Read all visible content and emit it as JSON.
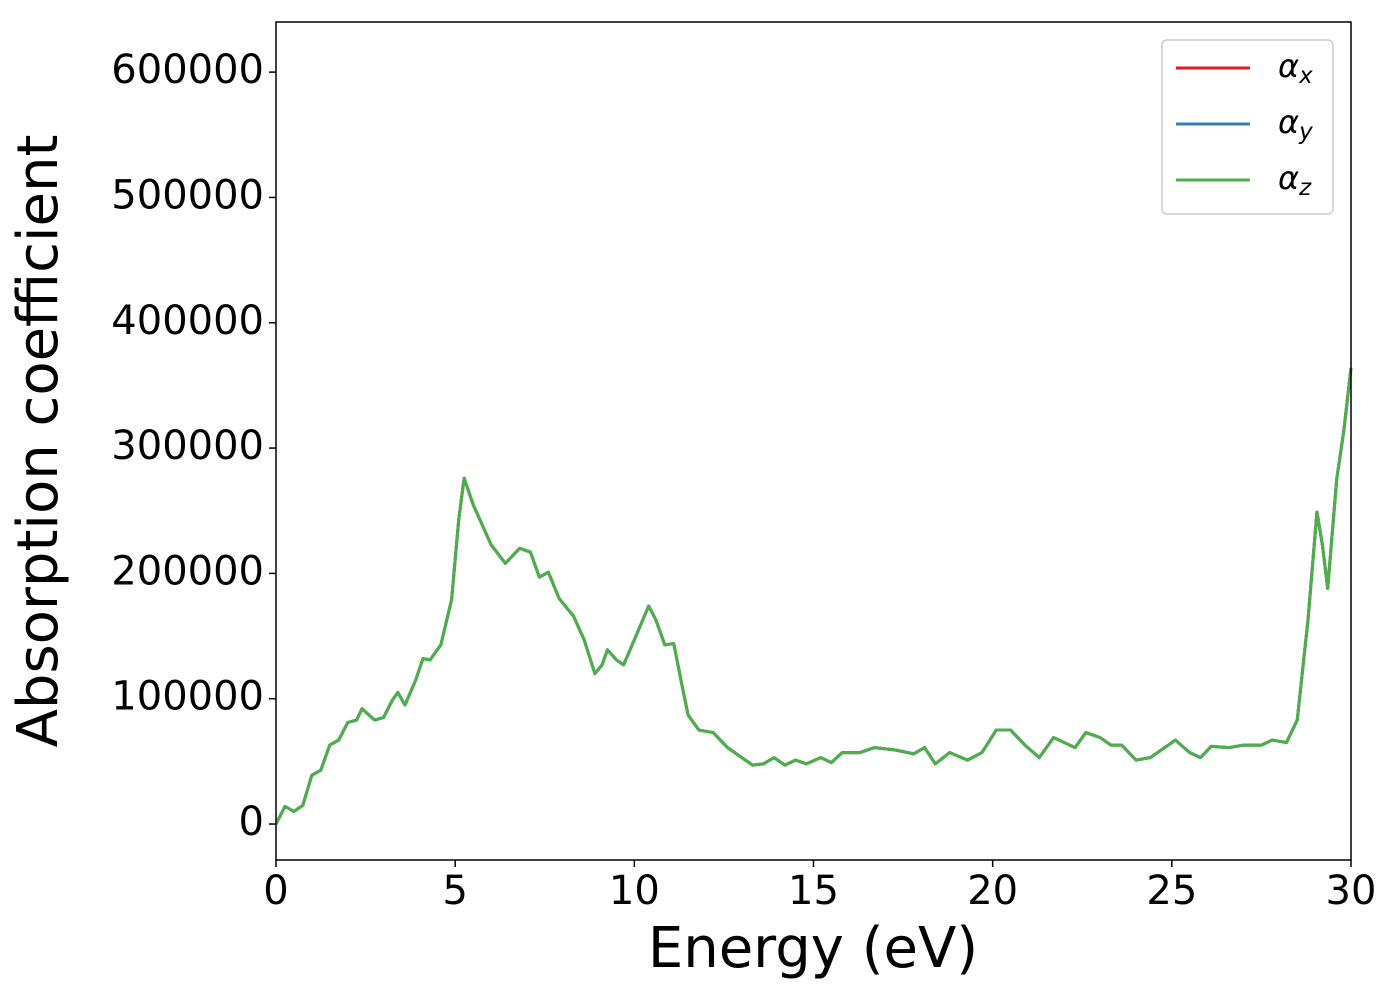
{
  "chart_data": {
    "type": "line",
    "xlabel": "Energy (eV)",
    "ylabel": "Absorption coefficient",
    "x": [
      0,
      0.25,
      0.5,
      0.75,
      1.0,
      1.25,
      1.5,
      1.75,
      2.0,
      2.25,
      2.4,
      2.75,
      3.0,
      3.25,
      3.4,
      3.6,
      3.9,
      4.1,
      4.3,
      4.6,
      4.9,
      5.1,
      5.25,
      5.5,
      5.75,
      6.0,
      6.4,
      6.8,
      7.1,
      7.35,
      7.6,
      7.9,
      8.3,
      8.6,
      8.9,
      9.1,
      9.25,
      9.5,
      9.7,
      10.0,
      10.4,
      10.6,
      10.85,
      11.1,
      11.3,
      11.5,
      11.8,
      12.2,
      12.6,
      13.0,
      13.3,
      13.6,
      13.9,
      14.2,
      14.5,
      14.8,
      15.2,
      15.5,
      15.8,
      16.3,
      16.7,
      17.3,
      17.8,
      18.1,
      18.4,
      18.8,
      19.3,
      19.7,
      20.1,
      20.5,
      20.9,
      21.3,
      21.7,
      22.0,
      22.3,
      22.6,
      23.0,
      23.3,
      23.6,
      24.0,
      24.4,
      24.8,
      25.1,
      25.5,
      25.8,
      26.1,
      26.6,
      27.0,
      27.5,
      27.8,
      28.2,
      28.5,
      28.8,
      29.05,
      29.2,
      29.35,
      29.6,
      29.8,
      30.0
    ],
    "series": [
      {
        "name": "αx",
        "color": "#e41a1c",
        "values": [
          0,
          14000,
          10000,
          15000,
          39000,
          43000,
          63000,
          67000,
          81000,
          83000,
          92000,
          83000,
          85000,
          99000,
          105000,
          95000,
          115000,
          132000,
          131000,
          143000,
          179000,
          243000,
          276000,
          255000,
          239000,
          223000,
          208000,
          220000,
          217000,
          197000,
          201000,
          180000,
          166000,
          147000,
          120000,
          127000,
          139000,
          131000,
          127000,
          147000,
          174000,
          163000,
          143000,
          144000,
          115000,
          87000,
          75000,
          73000,
          61000,
          53000,
          47000,
          48000,
          53000,
          47000,
          51000,
          48000,
          53000,
          49000,
          57000,
          57000,
          61000,
          59000,
          56000,
          61000,
          48000,
          57000,
          51000,
          57000,
          75000,
          75000,
          63000,
          53000,
          69000,
          65000,
          61000,
          73000,
          69000,
          63000,
          63000,
          51000,
          53000,
          61000,
          67000,
          57000,
          53000,
          62000,
          61000,
          63000,
          63000,
          67000,
          65000,
          83000,
          163000,
          249000,
          223000,
          188000,
          275000,
          314000,
          364000
        ]
      },
      {
        "name": "αy",
        "color": "#377eb8",
        "values": [
          0,
          14000,
          10000,
          15000,
          39000,
          43000,
          63000,
          67000,
          81000,
          83000,
          92000,
          83000,
          85000,
          99000,
          105000,
          95000,
          115000,
          132000,
          131000,
          143000,
          179000,
          243000,
          276000,
          255000,
          239000,
          223000,
          208000,
          220000,
          217000,
          197000,
          201000,
          180000,
          166000,
          147000,
          120000,
          127000,
          139000,
          131000,
          127000,
          147000,
          174000,
          163000,
          143000,
          144000,
          115000,
          87000,
          75000,
          73000,
          61000,
          53000,
          47000,
          48000,
          53000,
          47000,
          51000,
          48000,
          53000,
          49000,
          57000,
          57000,
          61000,
          59000,
          56000,
          61000,
          48000,
          57000,
          51000,
          57000,
          75000,
          75000,
          63000,
          53000,
          69000,
          65000,
          61000,
          73000,
          69000,
          63000,
          63000,
          51000,
          53000,
          61000,
          67000,
          57000,
          53000,
          62000,
          61000,
          63000,
          63000,
          67000,
          65000,
          83000,
          163000,
          249000,
          223000,
          188000,
          275000,
          314000,
          364000
        ]
      },
      {
        "name": "αz",
        "color": "#4daf4a",
        "values": [
          0,
          14000,
          10000,
          15000,
          39000,
          43000,
          63000,
          67000,
          81000,
          83000,
          92000,
          83000,
          85000,
          99000,
          105000,
          95000,
          115000,
          132000,
          131000,
          143000,
          179000,
          243000,
          276000,
          255000,
          239000,
          223000,
          208000,
          220000,
          217000,
          197000,
          201000,
          180000,
          166000,
          147000,
          120000,
          127000,
          139000,
          131000,
          127000,
          147000,
          174000,
          163000,
          143000,
          144000,
          115000,
          87000,
          75000,
          73000,
          61000,
          53000,
          47000,
          48000,
          53000,
          47000,
          51000,
          48000,
          53000,
          49000,
          57000,
          57000,
          61000,
          59000,
          56000,
          61000,
          48000,
          57000,
          51000,
          57000,
          75000,
          75000,
          63000,
          53000,
          69000,
          65000,
          61000,
          73000,
          69000,
          63000,
          63000,
          51000,
          53000,
          61000,
          67000,
          57000,
          53000,
          62000,
          61000,
          63000,
          63000,
          67000,
          65000,
          83000,
          163000,
          249000,
          223000,
          188000,
          275000,
          314000,
          364000
        ]
      }
    ],
    "xlim": [
      0,
      30
    ],
    "xticks": [
      0,
      5,
      10,
      15,
      20,
      25,
      30
    ],
    "ylim": [
      -28700,
      640000
    ],
    "yticks": [
      0,
      100000,
      200000,
      300000,
      400000,
      500000,
      600000
    ],
    "grid": false,
    "legend": "upper right"
  }
}
